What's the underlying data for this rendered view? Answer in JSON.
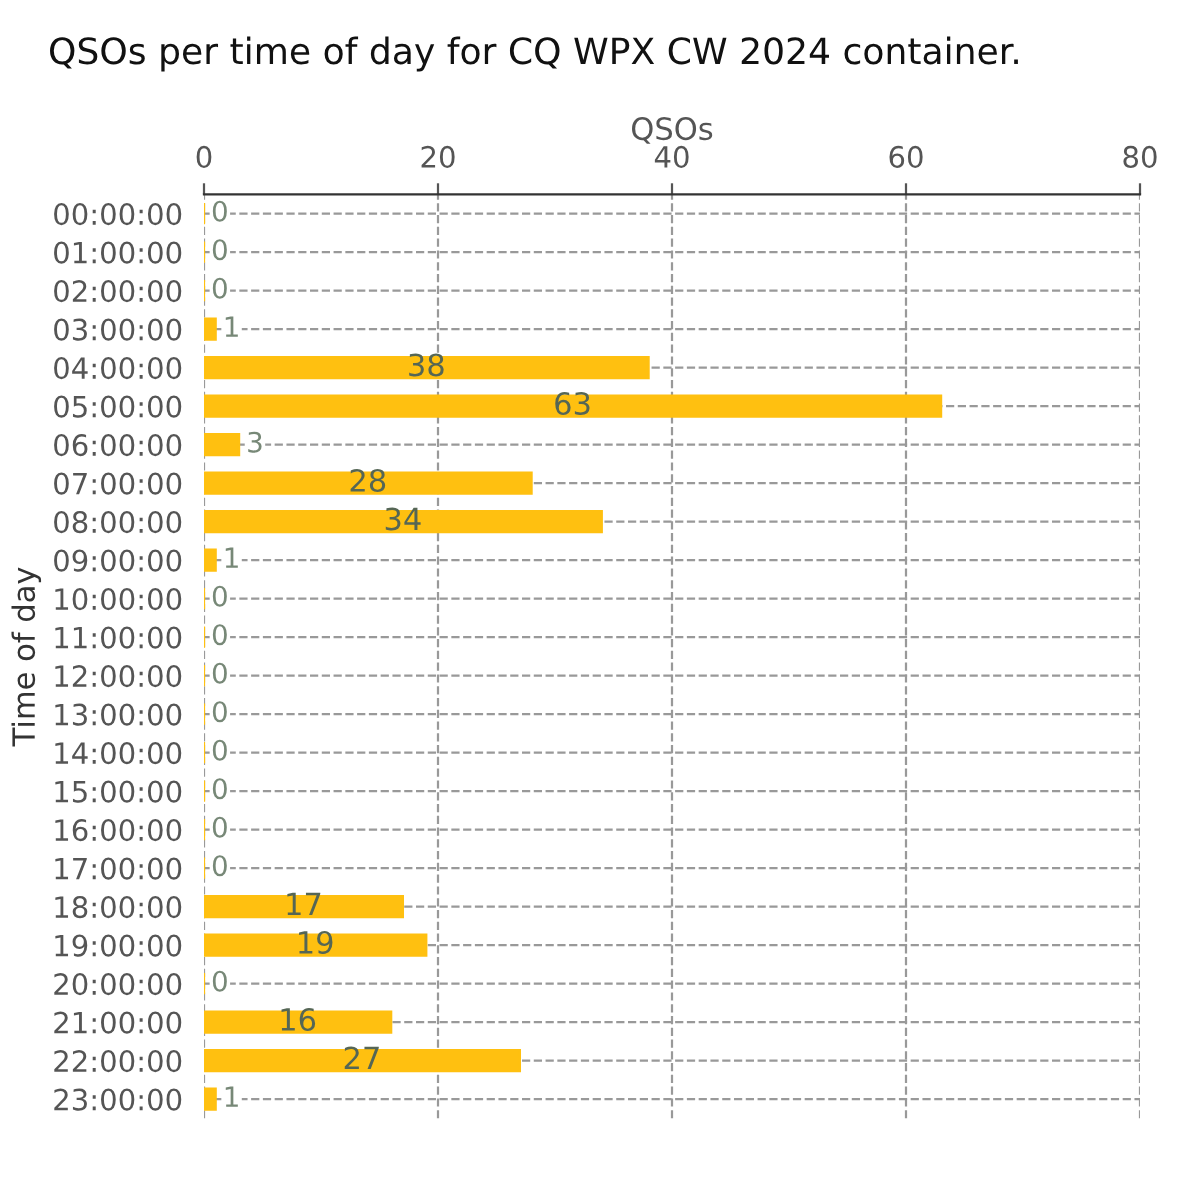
{
  "chart_data": {
    "type": "bar",
    "orientation": "horizontal",
    "title": "QSOs per time of day for CQ WPX CW 2024 container.",
    "xlabel": "QSOs",
    "ylabel": "Time of day",
    "categories": [
      "00:00:00",
      "01:00:00",
      "02:00:00",
      "03:00:00",
      "04:00:00",
      "05:00:00",
      "06:00:00",
      "07:00:00",
      "08:00:00",
      "09:00:00",
      "10:00:00",
      "11:00:00",
      "12:00:00",
      "13:00:00",
      "14:00:00",
      "15:00:00",
      "16:00:00",
      "17:00:00",
      "18:00:00",
      "19:00:00",
      "20:00:00",
      "21:00:00",
      "22:00:00",
      "23:00:00"
    ],
    "values": [
      0,
      0,
      0,
      1,
      38,
      63,
      3,
      28,
      34,
      1,
      0,
      0,
      0,
      0,
      0,
      0,
      0,
      0,
      17,
      19,
      0,
      16,
      27,
      1
    ],
    "color": "#ffc010",
    "xlim": [
      0,
      80
    ],
    "xticks": [
      0,
      20,
      40,
      60,
      80
    ],
    "grid": true,
    "data_labels": true
  }
}
